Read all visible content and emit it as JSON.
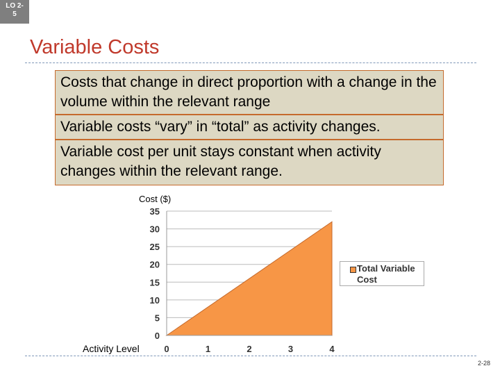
{
  "lo_badge": "LO 2-\n5",
  "slide_title": "Variable Costs",
  "bullets": [
    "Costs that change in direct proportion with a change in the volume within the relevant range",
    "Variable costs “vary” in “total” as activity changes.",
    "Variable cost per unit stays constant when activity changes within the relevant range."
  ],
  "page_number": "2-28",
  "colors": {
    "title": "#c0392b",
    "area": "#f79646",
    "box_fill": "#ddd8c3",
    "box_border": "#c56a2c"
  },
  "chart_data": {
    "type": "area",
    "ylabel": "Cost ($)",
    "xlabel": "Activity Level",
    "x": [
      0,
      4
    ],
    "series": [
      {
        "name": "Total Variable Cost",
        "values": [
          0,
          32
        ]
      }
    ],
    "xticks": [
      0,
      1,
      2,
      3,
      4
    ],
    "yticks": [
      0,
      5,
      10,
      15,
      20,
      25,
      30,
      35
    ],
    "xlim": [
      0,
      4
    ],
    "ylim": [
      0,
      35
    ],
    "grid": "horizontal",
    "legend": "right"
  }
}
